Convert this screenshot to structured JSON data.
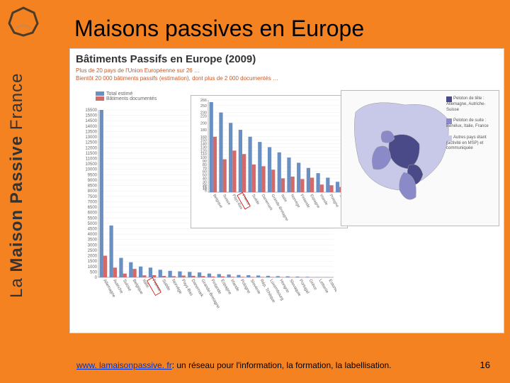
{
  "slide": {
    "title": "Maisons passives en Europe",
    "sidebar_brand": "La Maison Passive France",
    "page_number": "16",
    "footer_link_text": "www. lamaisonpassive. fr",
    "footer_text": ": un réseau pour l'information, la formation, la labellisation."
  },
  "chart": {
    "title": "Bâtiments Passifs en Europe (2009)",
    "subtitle_line1": "Plus de 20 pays de l'Union Européenne sur 26 …",
    "subtitle_line2": "Bientôt 20 000 bâtiments passifs (estimation), dont plus de 2 000 documentés …",
    "legend_series1": "Total estimé",
    "legend_series2": "Bâtiments documentés",
    "color_series1": "#6a8fc2",
    "color_series2": "#d26a6a",
    "title_color": "#333",
    "subtitle_color": "#c85a2a",
    "background_color": "#ffffff",
    "grid_color": "#eeeeee",
    "axis_color": "#999999",
    "main": {
      "ylim": [
        0,
        15500
      ],
      "ytick_step": 500,
      "bar_width": 0.38,
      "highlight_index": 5,
      "categories": [
        "Allemagne",
        "Autriche",
        "Suisse",
        "Belgique",
        "Italie",
        "France",
        "Suède",
        "Norvège",
        "Pays-Bas",
        "Danemark",
        "Grande-Bretagne",
        "Finlande",
        "Espagne",
        "Irlande",
        "Pologne",
        "Slovénie",
        "Rép. Tchèque",
        "Luxembourg",
        "Hongrie",
        "Slovaquie",
        "Portugal",
        "Grèce",
        "Lettonie",
        "Estonie"
      ],
      "values_total": [
        15500,
        4800,
        1800,
        1400,
        1000,
        900,
        700,
        600,
        550,
        500,
        450,
        350,
        300,
        260,
        220,
        200,
        170,
        140,
        110,
        90,
        70,
        50,
        30,
        20
      ],
      "values_documented": [
        2000,
        900,
        350,
        780,
        180,
        200,
        130,
        110,
        160,
        140,
        120,
        80,
        90,
        50,
        45,
        40,
        38,
        35,
        25,
        20,
        18,
        15,
        10,
        8
      ]
    },
    "inset": {
      "ylim": [
        0,
        266
      ],
      "yticks": [
        266,
        250,
        230,
        220,
        200,
        180,
        160,
        150,
        140,
        130,
        120,
        110,
        100,
        90,
        80,
        70,
        60,
        50,
        40,
        30,
        20,
        15,
        10,
        5
      ],
      "bar_width": 0.38,
      "highlight_index": 3,
      "categories": [
        "Belgique",
        "Suisse",
        "Pays-Bas",
        "France",
        "Suède",
        "Danemark",
        "Grande-Bretagne",
        "Italie",
        "Norvège",
        "Finlande",
        "Espagne",
        "Irlande",
        "Pologne",
        "Slovénie"
      ],
      "values_total": [
        260,
        230,
        200,
        180,
        160,
        145,
        130,
        115,
        100,
        85,
        70,
        55,
        42,
        30
      ],
      "values_documented": [
        160,
        95,
        120,
        110,
        80,
        75,
        65,
        40,
        45,
        38,
        42,
        22,
        20,
        15
      ]
    }
  },
  "map": {
    "bg_color": "#fafafa",
    "sea_color": "#ffffff",
    "border_color": "#bbbbbb",
    "tier1_color": "#4a4a88",
    "tier2_color": "#8a8ac8",
    "tier3_color": "#c8c8e8",
    "legend": {
      "tier1": "Peloton de tête : Allemagne, Autriche-Suisse",
      "tier2": "Peloton de suite : Bénélux, Italie, France",
      "tier3": "Autres pays étant (activité en MSP) et communiquée"
    }
  },
  "colors": {
    "slide_bg": "#f58220",
    "link": "#0033cc"
  }
}
